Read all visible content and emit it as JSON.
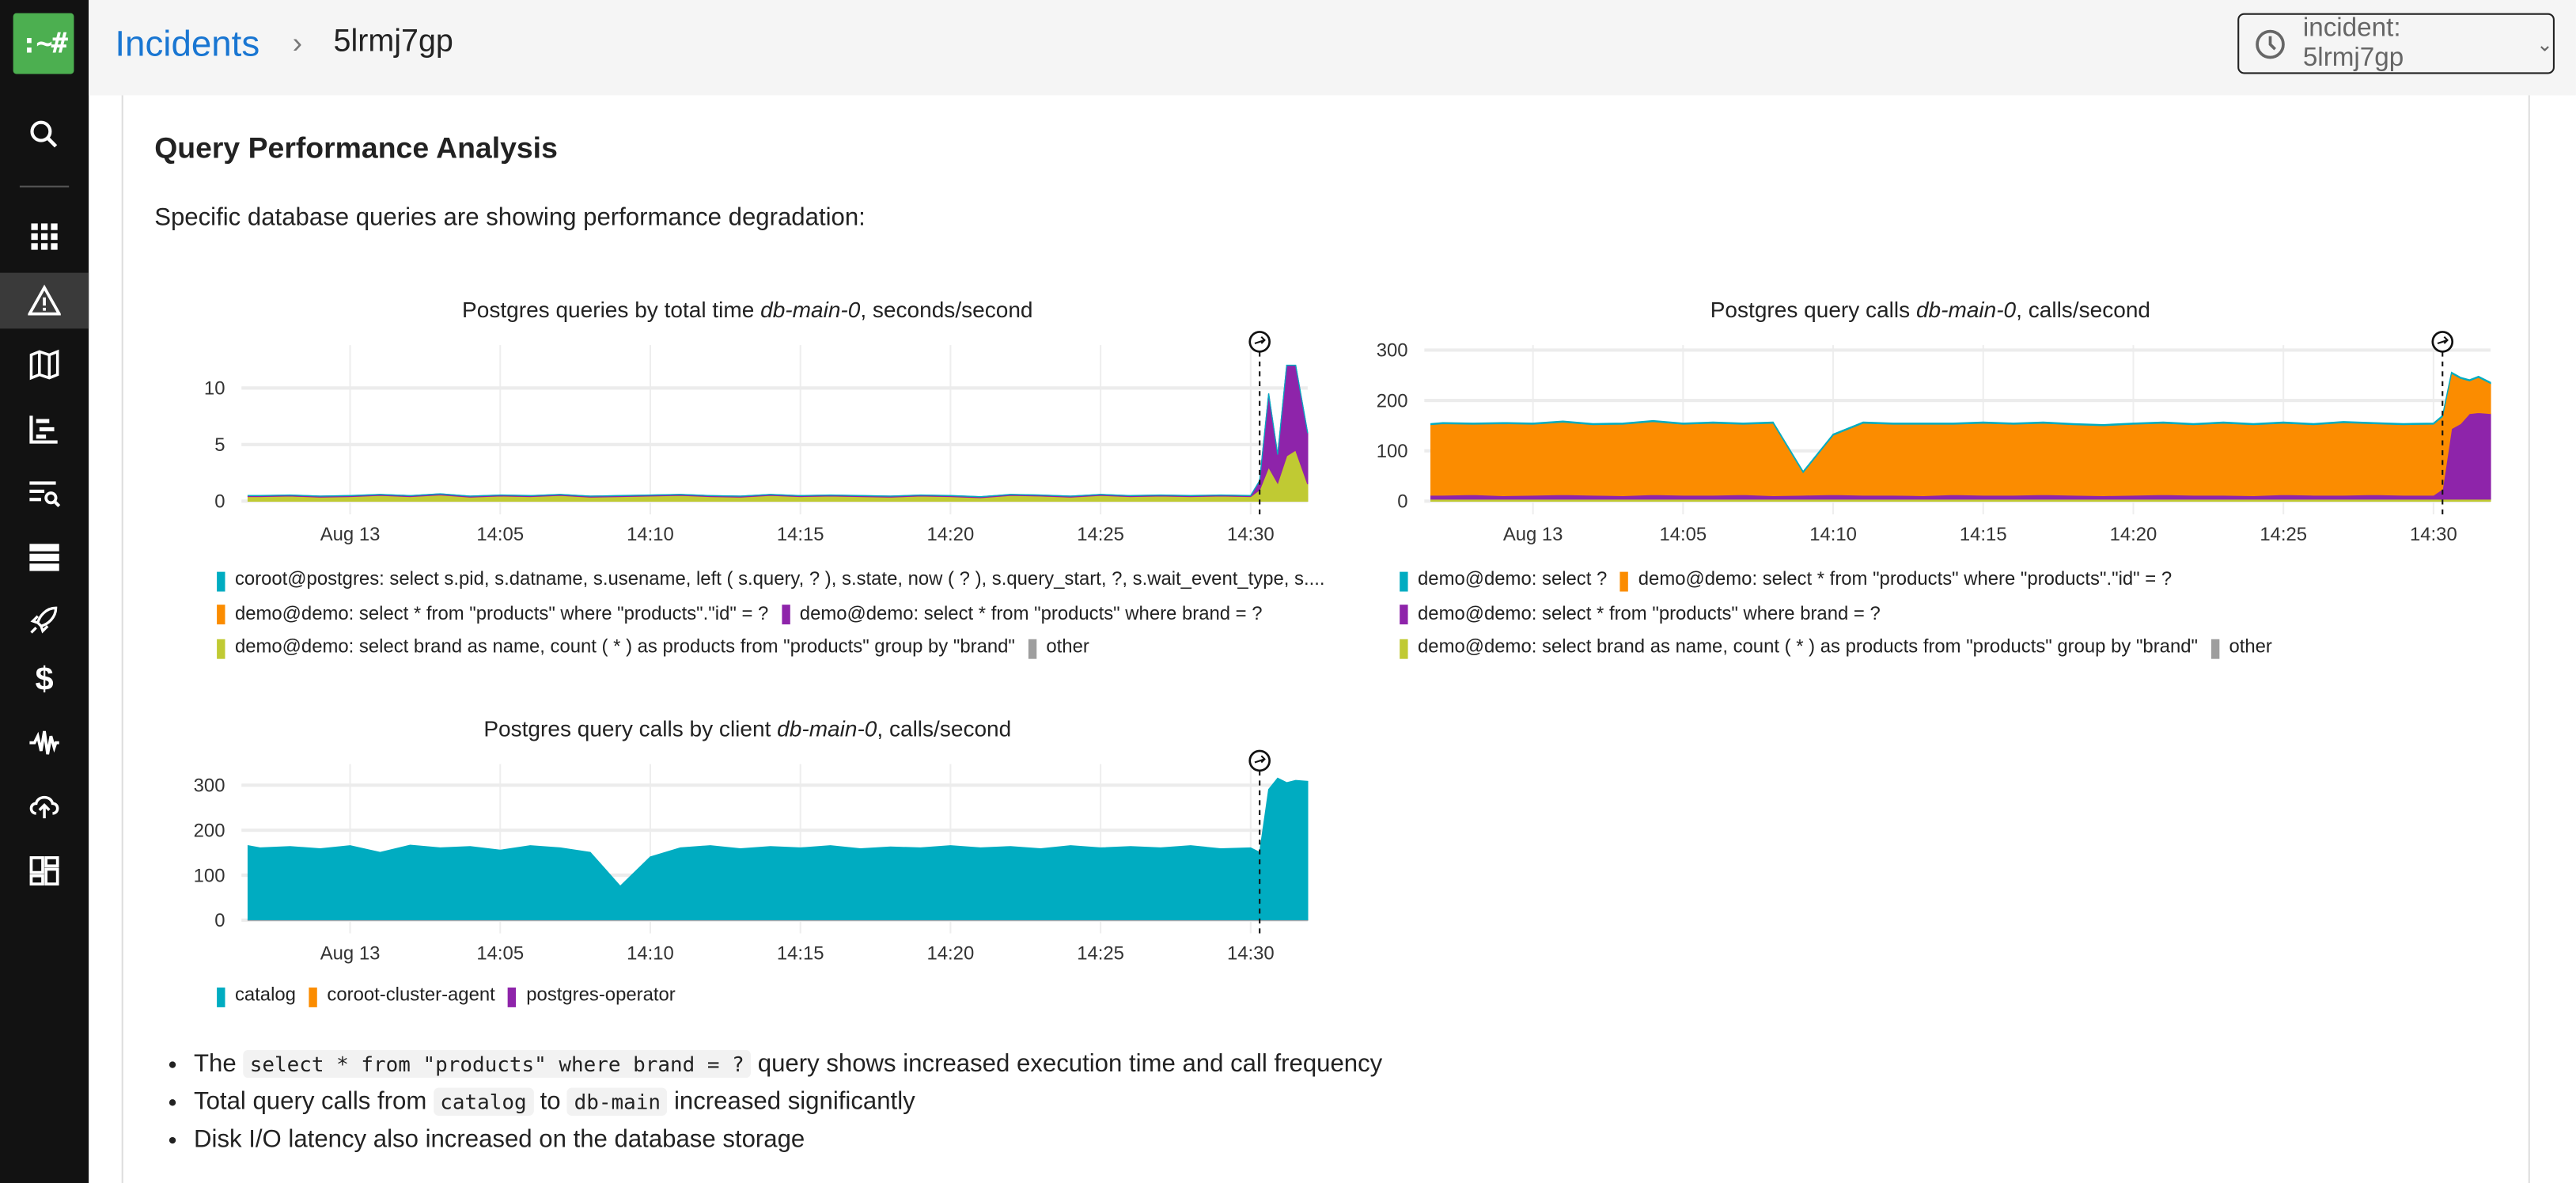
{
  "logo": ":~#",
  "header": {
    "breadcrumb_root": "Incidents",
    "breadcrumb_sep": "›",
    "breadcrumb_current": "5lrmj7gp",
    "incident_selector": "incident: 5lrmj7gp"
  },
  "sidebar": {
    "items": [
      "search",
      "applications",
      "incidents",
      "service-map",
      "traces",
      "logs",
      "nodes",
      "deployments",
      "costs",
      "anomalies",
      "cloud",
      "dashboards"
    ],
    "active": "incidents"
  },
  "main": {
    "heading": "Query Performance Analysis",
    "intro": "Specific database queries are showing performance degradation:",
    "bullets": [
      {
        "pre": "The",
        "code": "select * from \"products\" where brand = ?",
        "post": "query shows increased execution time and call frequency"
      },
      {
        "pre": "Total query calls from",
        "code": "catalog",
        "mid": "to",
        "code2": "db-main",
        "post": "increased significantly"
      },
      {
        "pre": "Disk I/O latency also increased on the database storage"
      }
    ]
  },
  "chart_data": [
    {
      "type": "area",
      "stacked": true,
      "title": "Postgres queries by total time",
      "title_italic": "db-main-0",
      "title_suffix": ", seconds/second",
      "x_unit": "minutes after 14:00, Aug 13",
      "x": [
        -3.4,
        -3,
        -2,
        -1,
        0,
        1,
        2,
        3,
        4,
        5,
        6,
        7,
        8,
        9,
        10,
        11,
        12,
        13,
        14,
        15,
        16,
        17,
        18,
        19,
        20,
        21,
        22,
        23,
        24,
        25,
        26,
        27,
        28,
        29,
        30,
        30.3,
        30.6,
        30.9,
        31.2,
        31.5,
        31.9
      ],
      "xlim": [
        -3.4,
        31.9
      ],
      "ylim": [
        0,
        13.8
      ],
      "yticks": [
        0,
        5,
        10
      ],
      "xticks": [
        {
          "t": 0,
          "label": "Aug 13"
        },
        {
          "t": 5,
          "label": "14:05"
        },
        {
          "t": 10,
          "label": "14:10"
        },
        {
          "t": 15,
          "label": "14:15"
        },
        {
          "t": 20,
          "label": "14:20"
        },
        {
          "t": 25,
          "label": "14:25"
        },
        {
          "t": 30,
          "label": "14:30"
        }
      ],
      "incident_t": 30.3,
      "series": [
        {
          "name": "demo@demo: select brand as name, count ( * ) as products from \"products\" group by \"brand\"",
          "color": "#c0ca33",
          "values": [
            0.4,
            0.4,
            0.45,
            0.35,
            0.4,
            0.5,
            0.4,
            0.55,
            0.35,
            0.45,
            0.4,
            0.5,
            0.35,
            0.4,
            0.45,
            0.5,
            0.4,
            0.35,
            0.5,
            0.4,
            0.45,
            0.4,
            0.35,
            0.45,
            0.4,
            0.3,
            0.5,
            0.45,
            0.35,
            0.5,
            0.4,
            0.45,
            0.4,
            0.45,
            0.4,
            1.0,
            3.0,
            1.6,
            4.0,
            4.5,
            1.5
          ]
        },
        {
          "name": "demo@demo: select * from \"products\" where \"products\".\"id\" = ?",
          "color": "#fb8c00",
          "values": 0.01
        },
        {
          "name": "demo@demo: select * from \"products\" where brand = ?",
          "color": "#8e24aa",
          "values": [
            0.08,
            0.08,
            0.08,
            0.08,
            0.08,
            0.08,
            0.08,
            0.08,
            0.08,
            0.08,
            0.08,
            0.08,
            0.08,
            0.08,
            0.08,
            0.08,
            0.08,
            0.08,
            0.08,
            0.08,
            0.08,
            0.08,
            0.08,
            0.08,
            0.08,
            0.08,
            0.08,
            0.08,
            0.08,
            0.08,
            0.08,
            0.08,
            0.08,
            0.08,
            0.08,
            0.8,
            6.5,
            2.5,
            8.0,
            7.5,
            4.5
          ]
        },
        {
          "name": "coroot@postgres: select s.pid, s.datname, s.usename, left ( s.query, ? ), s.state, now ( ? ), s.query_start, ?, s.wait_event_type, s....",
          "color": "#00acc1",
          "values": 0.01
        },
        {
          "name": "other",
          "color": "#9e9e9e",
          "values": 0
        }
      ],
      "legend_order": [
        3,
        1,
        2,
        0,
        4
      ]
    },
    {
      "type": "area",
      "stacked": true,
      "title": "Postgres query calls",
      "title_italic": "db-main-0",
      "title_suffix": ", calls/second",
      "x_unit": "minutes after 14:00, Aug 13",
      "x": [
        -3.4,
        -3,
        -2,
        -1,
        0,
        1,
        2,
        3,
        4,
        5,
        6,
        7,
        8,
        9,
        10,
        11,
        12,
        13,
        14,
        15,
        16,
        17,
        18,
        19,
        20,
        21,
        22,
        23,
        24,
        25,
        26,
        27,
        28,
        29,
        30,
        30.3,
        30.6,
        30.9,
        31.2,
        31.5,
        31.9
      ],
      "xlim": [
        -3.4,
        31.9
      ],
      "ylim": [
        0,
        310
      ],
      "yticks": [
        0,
        100,
        200,
        300
      ],
      "xticks": [
        {
          "t": 0,
          "label": "Aug 13"
        },
        {
          "t": 5,
          "label": "14:05"
        },
        {
          "t": 10,
          "label": "14:10"
        },
        {
          "t": 15,
          "label": "14:15"
        },
        {
          "t": 20,
          "label": "14:20"
        },
        {
          "t": 25,
          "label": "14:25"
        },
        {
          "t": 30,
          "label": "14:30"
        }
      ],
      "incident_t": 30.3,
      "series": [
        {
          "name": "demo@demo: select brand as name, count ( * ) as products from \"products\" group by \"brand\"",
          "color": "#c0ca33",
          "values": 4
        },
        {
          "name": "demo@demo: select * from \"products\" where brand = ?",
          "color": "#8e24aa",
          "values": [
            8,
            8,
            9,
            7,
            8,
            9,
            8,
            7,
            9,
            8,
            8,
            9,
            7,
            8,
            9,
            8,
            8,
            7,
            9,
            8,
            8,
            9,
            8,
            7,
            8,
            9,
            8,
            8,
            7,
            9,
            8,
            8,
            9,
            8,
            8,
            20,
            140,
            150,
            170,
            172,
            170
          ]
        },
        {
          "name": "demo@demo: select * from \"products\" where \"products\".\"id\" = ?",
          "color": "#fb8c00",
          "values": [
            140,
            142,
            140,
            143,
            141,
            144,
            140,
            142,
            145,
            141,
            143,
            140,
            144,
            45,
            118,
            143,
            141,
            142,
            140,
            143,
            141,
            142,
            140,
            139,
            141,
            142,
            140,
            143,
            141,
            142,
            140,
            144,
            141,
            140,
            141,
            144,
            110,
            90,
            65,
            70,
            60
          ]
        },
        {
          "name": "demo@demo: select ?",
          "color": "#00acc1",
          "values": 2
        },
        {
          "name": "other",
          "color": "#9e9e9e",
          "values": 0
        }
      ],
      "legend_order": [
        3,
        2,
        1,
        0,
        4
      ]
    },
    {
      "type": "area",
      "stacked": true,
      "title": "Postgres query calls by client",
      "title_italic": "db-main-0",
      "title_suffix": ", calls/second",
      "x_unit": "minutes after 14:00, Aug 13",
      "x": [
        -3.4,
        -3,
        -2,
        -1,
        0,
        1,
        2,
        3,
        4,
        5,
        6,
        7,
        8,
        9,
        10,
        11,
        12,
        13,
        14,
        15,
        16,
        17,
        18,
        19,
        20,
        21,
        22,
        23,
        24,
        25,
        26,
        27,
        28,
        29,
        30,
        30.3,
        30.6,
        30.9,
        31.2,
        31.5,
        31.9
      ],
      "xlim": [
        -3.4,
        31.9
      ],
      "ylim": [
        0,
        347
      ],
      "yticks": [
        0,
        100,
        200,
        300
      ],
      "xticks": [
        {
          "t": 0,
          "label": "Aug 13"
        },
        {
          "t": 5,
          "label": "14:05"
        },
        {
          "t": 10,
          "label": "14:10"
        },
        {
          "t": 15,
          "label": "14:15"
        },
        {
          "t": 20,
          "label": "14:20"
        },
        {
          "t": 25,
          "label": "14:25"
        },
        {
          "t": 30,
          "label": "14:30"
        }
      ],
      "incident_t": 30.3,
      "series": [
        {
          "name": "coroot-cluster-agent",
          "color": "#fb8c00",
          "values": 0.3
        },
        {
          "name": "postgres-operator",
          "color": "#8e24aa",
          "values": 0.3
        },
        {
          "name": "catalog",
          "color": "#00acc1",
          "values": [
            165,
            160,
            163,
            158,
            165,
            150,
            166,
            160,
            163,
            155,
            165,
            160,
            150,
            75,
            140,
            160,
            165,
            158,
            163,
            160,
            165,
            158,
            162,
            160,
            165,
            160,
            163,
            158,
            165,
            160,
            163,
            160,
            165,
            158,
            160,
            150,
            290,
            315,
            305,
            310,
            308
          ]
        }
      ],
      "legend_order": [
        2,
        0,
        1
      ]
    }
  ]
}
